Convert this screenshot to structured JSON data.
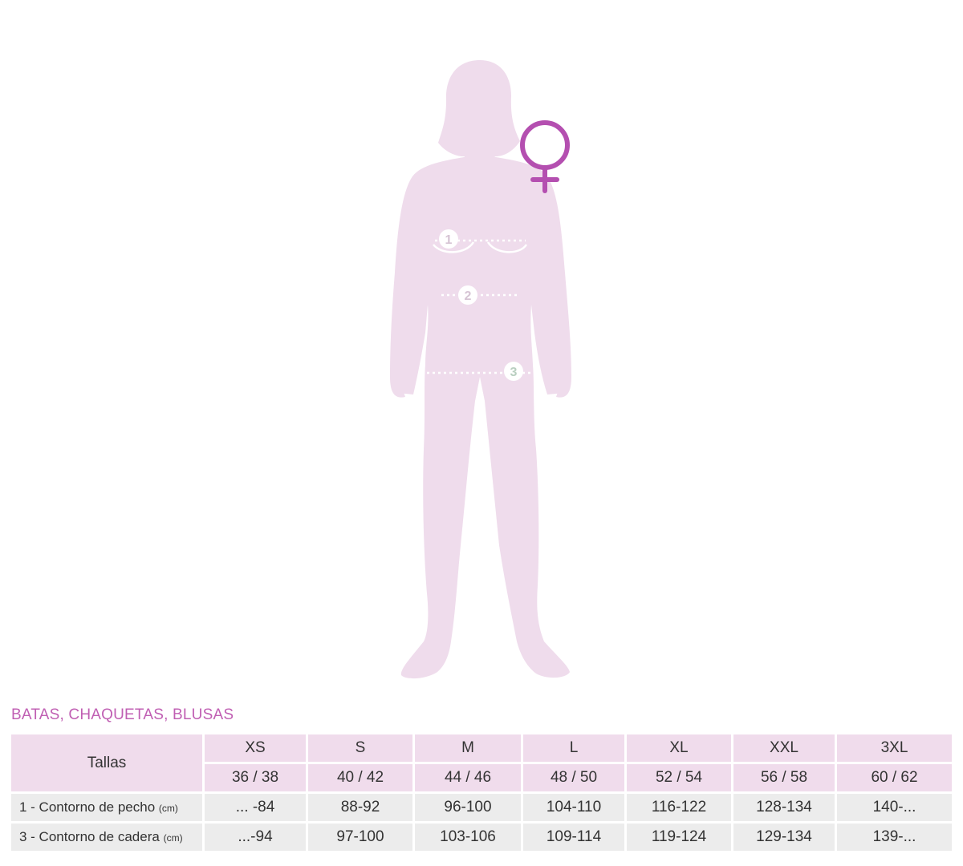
{
  "figure": {
    "measure_points": [
      "1",
      "2",
      "3"
    ],
    "icons": [
      "female-symbol-icon"
    ],
    "colors": {
      "silhouette": "#efdcec",
      "symbol": "#b44fb0",
      "marker": "#ffffff",
      "marker_text": "#d6c4d4"
    }
  },
  "section_title": "BATAS, CHAQUETAS, BLUSAS",
  "table": {
    "header_label": "Tallas",
    "sizes": [
      "XS",
      "S",
      "M",
      "L",
      "XL",
      "XXL",
      "3XL"
    ],
    "size_numbers": [
      "36 / 38",
      "40 / 42",
      "44 / 46",
      "48 / 50",
      "52 / 54",
      "56 / 58",
      "60 / 62"
    ],
    "rows": [
      {
        "label": "1 - Contorno de pecho",
        "unit": "(cm)",
        "values": [
          "... -84",
          "88-92",
          "96-100",
          "104-110",
          "116-122",
          "128-134",
          "140-..."
        ]
      },
      {
        "label": "3 - Contorno de cadera",
        "unit": "(cm)",
        "values": [
          "...-94",
          "97-100",
          "103-106",
          "109-114",
          "119-124",
          "129-134",
          "139-..."
        ]
      }
    ]
  }
}
